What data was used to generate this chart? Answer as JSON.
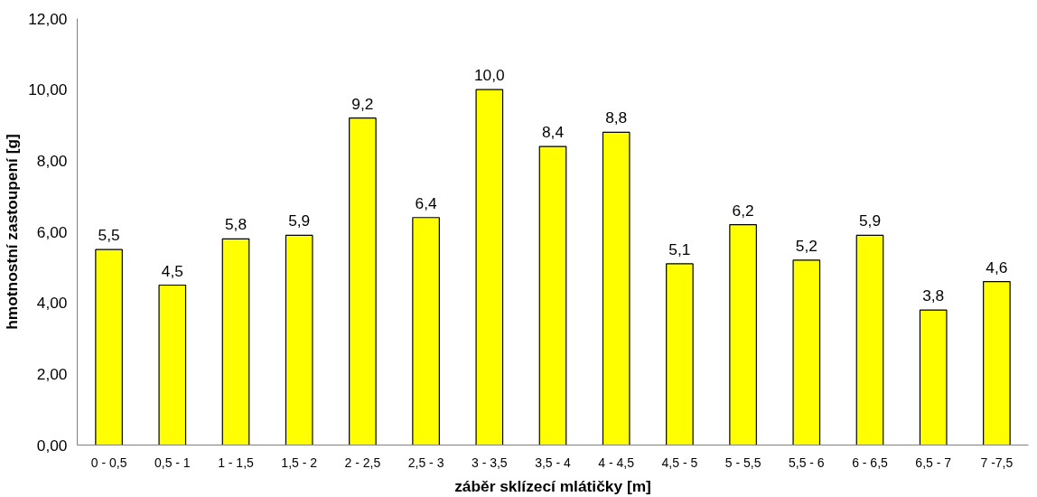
{
  "chart_data": {
    "type": "bar",
    "xlabel": "záběr sklízecí mlátičky [m]",
    "ylabel": "hmotnostní zastoupení [g]",
    "categories": [
      "0 - 0,5",
      "0,5 - 1",
      "1 - 1,5",
      "1,5 - 2",
      "2 - 2,5",
      "2,5 - 3",
      "3 - 3,5",
      "3,5 - 4",
      "4 - 4,5",
      "4,5 - 5",
      "5 - 5,5",
      "5,5 - 6",
      "6 - 6,5",
      "6,5 - 7",
      "7 -7,5"
    ],
    "values": [
      5.5,
      4.5,
      5.8,
      5.9,
      9.2,
      6.4,
      10.0,
      8.4,
      8.8,
      5.1,
      6.2,
      5.2,
      5.9,
      3.8,
      4.6
    ],
    "value_labels": [
      "5,5",
      "4,5",
      "5,8",
      "5,9",
      "9,2",
      "6,4",
      "10,0",
      "8,4",
      "8,8",
      "5,1",
      "6,2",
      "5,2",
      "5,9",
      "3,8",
      "4,6"
    ],
    "color": "#ffff00",
    "ylim": [
      0,
      12
    ],
    "yticks": [
      {
        "value": 0,
        "label": "0,00"
      },
      {
        "value": 2,
        "label": "2,00"
      },
      {
        "value": 4,
        "label": "4,00"
      },
      {
        "value": 6,
        "label": "6,00"
      },
      {
        "value": 8,
        "label": "8,00"
      },
      {
        "value": 10,
        "label": "10,00"
      },
      {
        "value": 12,
        "label": "12,00"
      }
    ],
    "grid": false
  }
}
